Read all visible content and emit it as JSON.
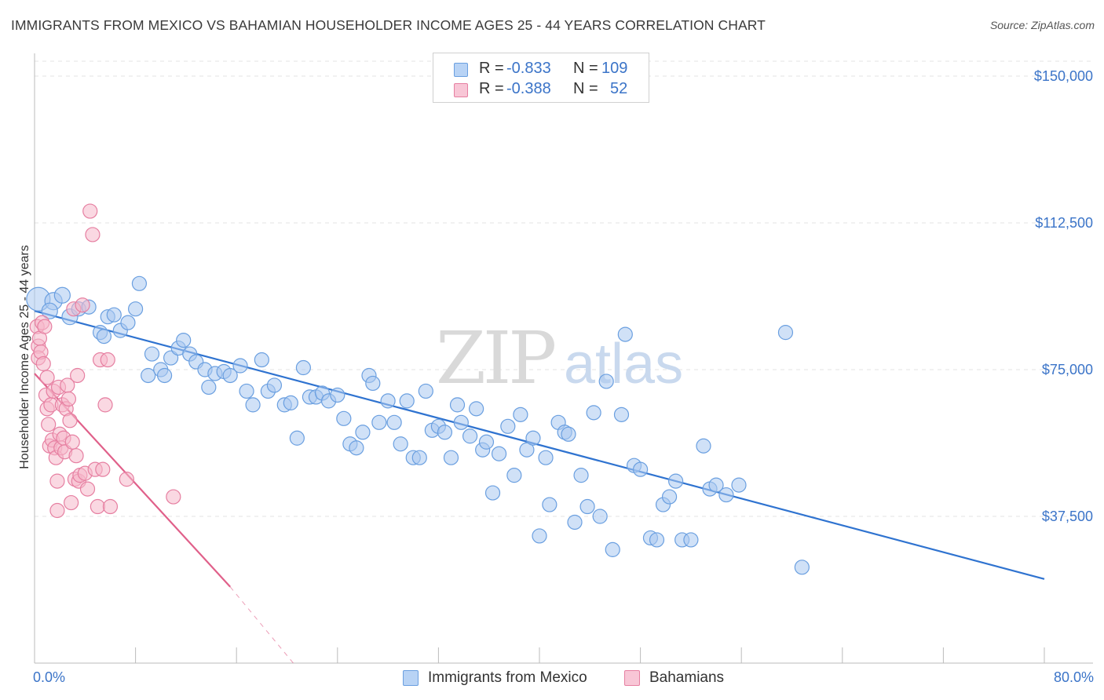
{
  "title": "IMMIGRANTS FROM MEXICO VS BAHAMIAN HOUSEHOLDER INCOME AGES 25 - 44 YEARS CORRELATION CHART",
  "source": "Source: ZipAtlas.com",
  "watermark": {
    "zip": "ZIP",
    "atlas": "atlas"
  },
  "colors": {
    "blue_fill": "#a9c8f0",
    "blue_stroke": "#6a9fe0",
    "blue_line": "#2f73d0",
    "pink_fill": "#f5b8cb",
    "pink_stroke": "#e67fa1",
    "pink_line": "#e0608a",
    "tick_text": "#3b74c8",
    "grid": "#e3e3e3"
  },
  "legend": {
    "rows": [
      {
        "r_label": "R =",
        "r_value": "-0.833",
        "n_label": "N =",
        "n_value": "109"
      },
      {
        "r_label": "R =",
        "r_value": "-0.388",
        "n_label": "N =",
        "n_value": "52"
      }
    ]
  },
  "bottom_legend": {
    "series1": "Immigrants from Mexico",
    "series2": "Bahamians"
  },
  "chart_data": {
    "type": "scatter",
    "title": "IMMIGRANTS FROM MEXICO VS BAHAMIAN HOUSEHOLDER INCOME AGES 25 - 44 YEARS CORRELATION CHART",
    "xlabel": "",
    "ylabel": "Householder Income Ages 25 - 44 years",
    "xlim": [
      0,
      80
    ],
    "ylim": [
      0,
      155000
    ],
    "x_tick_labels": [
      "0.0%",
      "80.0%"
    ],
    "y_ticks": [
      37500,
      75000,
      112500,
      150000
    ],
    "y_tick_labels": [
      "$37,500",
      "$75,000",
      "$112,500",
      "$150,000"
    ],
    "series": [
      {
        "name": "Immigrants from Mexico",
        "color": "#6a9fe0",
        "trendline": {
          "x": [
            0,
            80
          ],
          "y": [
            90000,
            21500
          ]
        },
        "points": [
          [
            0.3,
            93000,
            15
          ],
          [
            1.5,
            92500,
            11
          ],
          [
            2.2,
            94000,
            10
          ],
          [
            1.2,
            90000,
            10
          ],
          [
            2.8,
            88500,
            10
          ],
          [
            3.5,
            90500,
            9
          ],
          [
            4.3,
            91000,
            9
          ],
          [
            5.2,
            84500,
            9
          ],
          [
            5.5,
            83500,
            9
          ],
          [
            5.8,
            88500,
            9
          ],
          [
            6.3,
            89000,
            9
          ],
          [
            6.8,
            85000,
            9
          ],
          [
            7.4,
            87000,
            9
          ],
          [
            8.0,
            90500,
            9
          ],
          [
            8.3,
            97000,
            9
          ],
          [
            9.0,
            73500,
            9
          ],
          [
            9.3,
            79000,
            9
          ],
          [
            10.0,
            75000,
            9
          ],
          [
            10.3,
            73500,
            9
          ],
          [
            10.8,
            78000,
            9
          ],
          [
            11.4,
            80500,
            9
          ],
          [
            11.8,
            82500,
            9
          ],
          [
            12.3,
            79000,
            9
          ],
          [
            12.8,
            77000,
            9
          ],
          [
            13.5,
            75000,
            9
          ],
          [
            13.8,
            70500,
            9
          ],
          [
            14.3,
            74000,
            9
          ],
          [
            15.0,
            74500,
            9
          ],
          [
            15.5,
            73500,
            9
          ],
          [
            16.3,
            76000,
            9
          ],
          [
            16.8,
            69500,
            9
          ],
          [
            17.3,
            66000,
            9
          ],
          [
            18.0,
            77500,
            9
          ],
          [
            18.5,
            69500,
            9
          ],
          [
            19.0,
            71000,
            9
          ],
          [
            19.8,
            66000,
            9
          ],
          [
            20.3,
            66500,
            9
          ],
          [
            20.8,
            57500,
            9
          ],
          [
            21.3,
            75500,
            9
          ],
          [
            21.8,
            68000,
            9
          ],
          [
            22.3,
            68000,
            9
          ],
          [
            22.8,
            69000,
            9
          ],
          [
            23.3,
            67000,
            9
          ],
          [
            24.0,
            68500,
            9
          ],
          [
            24.5,
            62500,
            9
          ],
          [
            25.0,
            56000,
            9
          ],
          [
            25.5,
            55000,
            9
          ],
          [
            26.0,
            59000,
            9
          ],
          [
            26.5,
            73500,
            9
          ],
          [
            26.8,
            71500,
            9
          ],
          [
            27.3,
            61500,
            9
          ],
          [
            28.0,
            67000,
            9
          ],
          [
            28.5,
            61500,
            9
          ],
          [
            29.0,
            56000,
            9
          ],
          [
            29.5,
            67000,
            9
          ],
          [
            30.0,
            52500,
            9
          ],
          [
            30.5,
            52500,
            9
          ],
          [
            31.0,
            69500,
            9
          ],
          [
            31.5,
            59500,
            9
          ],
          [
            32.0,
            60500,
            9
          ],
          [
            32.5,
            59000,
            9
          ],
          [
            33.0,
            52500,
            9
          ],
          [
            33.5,
            66000,
            9
          ],
          [
            33.8,
            61500,
            9
          ],
          [
            34.5,
            58000,
            9
          ],
          [
            35.0,
            65000,
            9
          ],
          [
            35.5,
            54500,
            9
          ],
          [
            35.8,
            56500,
            9
          ],
          [
            36.3,
            43500,
            9
          ],
          [
            36.8,
            53500,
            9
          ],
          [
            37.5,
            60500,
            9
          ],
          [
            38.0,
            48000,
            9
          ],
          [
            38.5,
            63500,
            9
          ],
          [
            39.0,
            54500,
            9
          ],
          [
            39.5,
            57500,
            9
          ],
          [
            40.0,
            32500,
            9
          ],
          [
            40.5,
            52500,
            9
          ],
          [
            40.8,
            40500,
            9
          ],
          [
            41.5,
            61500,
            9
          ],
          [
            42.0,
            59000,
            9
          ],
          [
            42.3,
            58500,
            9
          ],
          [
            42.8,
            36000,
            9
          ],
          [
            43.3,
            48000,
            9
          ],
          [
            43.8,
            40000,
            9
          ],
          [
            44.3,
            64000,
            9
          ],
          [
            44.8,
            37500,
            9
          ],
          [
            45.3,
            72000,
            9
          ],
          [
            45.8,
            29000,
            9
          ],
          [
            46.5,
            63500,
            9
          ],
          [
            46.8,
            84000,
            9
          ],
          [
            47.5,
            50500,
            9
          ],
          [
            48.0,
            49500,
            9
          ],
          [
            48.8,
            32000,
            9
          ],
          [
            49.3,
            31500,
            9
          ],
          [
            49.8,
            40500,
            9
          ],
          [
            50.3,
            42500,
            9
          ],
          [
            50.8,
            46500,
            9
          ],
          [
            51.3,
            31500,
            9
          ],
          [
            52.0,
            31500,
            9
          ],
          [
            53.0,
            55500,
            9
          ],
          [
            53.5,
            44500,
            9
          ],
          [
            54.0,
            45500,
            9
          ],
          [
            54.8,
            43000,
            9
          ],
          [
            55.8,
            45500,
            9
          ],
          [
            59.5,
            84500,
            9
          ],
          [
            60.8,
            24500,
            9
          ]
        ]
      },
      {
        "name": "Bahamians",
        "color": "#e67fa1",
        "trendline": {
          "x": [
            0,
            15.5
          ],
          "y": [
            74000,
            19500
          ]
        },
        "trendline_dashed": {
          "x": [
            15.5,
            20.5
          ],
          "y": [
            19500,
            0
          ]
        },
        "points": [
          [
            0.2,
            86000,
            9
          ],
          [
            0.3,
            81000,
            9
          ],
          [
            0.3,
            78000,
            9
          ],
          [
            0.4,
            83000,
            9
          ],
          [
            0.5,
            79500,
            9
          ],
          [
            0.6,
            87000,
            9
          ],
          [
            0.7,
            76500,
            9
          ],
          [
            0.8,
            86000,
            9
          ],
          [
            0.9,
            68500,
            9
          ],
          [
            1.0,
            73000,
            9
          ],
          [
            1.0,
            65000,
            9
          ],
          [
            1.1,
            61000,
            9
          ],
          [
            1.2,
            55500,
            9
          ],
          [
            1.3,
            66000,
            9
          ],
          [
            1.4,
            57000,
            9
          ],
          [
            1.5,
            69500,
            9
          ],
          [
            1.6,
            55000,
            9
          ],
          [
            1.7,
            52500,
            9
          ],
          [
            1.8,
            46500,
            9
          ],
          [
            1.8,
            39000,
            9
          ],
          [
            1.9,
            70500,
            9
          ],
          [
            2.0,
            58500,
            9
          ],
          [
            2.1,
            55000,
            9
          ],
          [
            2.2,
            66000,
            9
          ],
          [
            2.3,
            57500,
            9
          ],
          [
            2.4,
            54000,
            9
          ],
          [
            2.5,
            65000,
            9
          ],
          [
            2.6,
            71000,
            9
          ],
          [
            2.7,
            67500,
            9
          ],
          [
            2.8,
            62000,
            9
          ],
          [
            2.9,
            41000,
            9
          ],
          [
            3.0,
            56500,
            9
          ],
          [
            3.1,
            90500,
            9
          ],
          [
            3.2,
            47000,
            9
          ],
          [
            3.3,
            53000,
            9
          ],
          [
            3.4,
            73500,
            9
          ],
          [
            3.5,
            46500,
            9
          ],
          [
            3.6,
            48000,
            9
          ],
          [
            3.8,
            91500,
            9
          ],
          [
            4.0,
            48500,
            9
          ],
          [
            4.2,
            44500,
            9
          ],
          [
            4.4,
            115500,
            9
          ],
          [
            4.6,
            109500,
            9
          ],
          [
            4.8,
            49500,
            9
          ],
          [
            5.0,
            40000,
            9
          ],
          [
            5.2,
            77500,
            9
          ],
          [
            5.4,
            49500,
            9
          ],
          [
            5.6,
            66000,
            9
          ],
          [
            5.8,
            77500,
            9
          ],
          [
            6.0,
            40000,
            9
          ],
          [
            7.3,
            47000,
            9
          ],
          [
            11.0,
            42500,
            9
          ]
        ]
      }
    ]
  }
}
